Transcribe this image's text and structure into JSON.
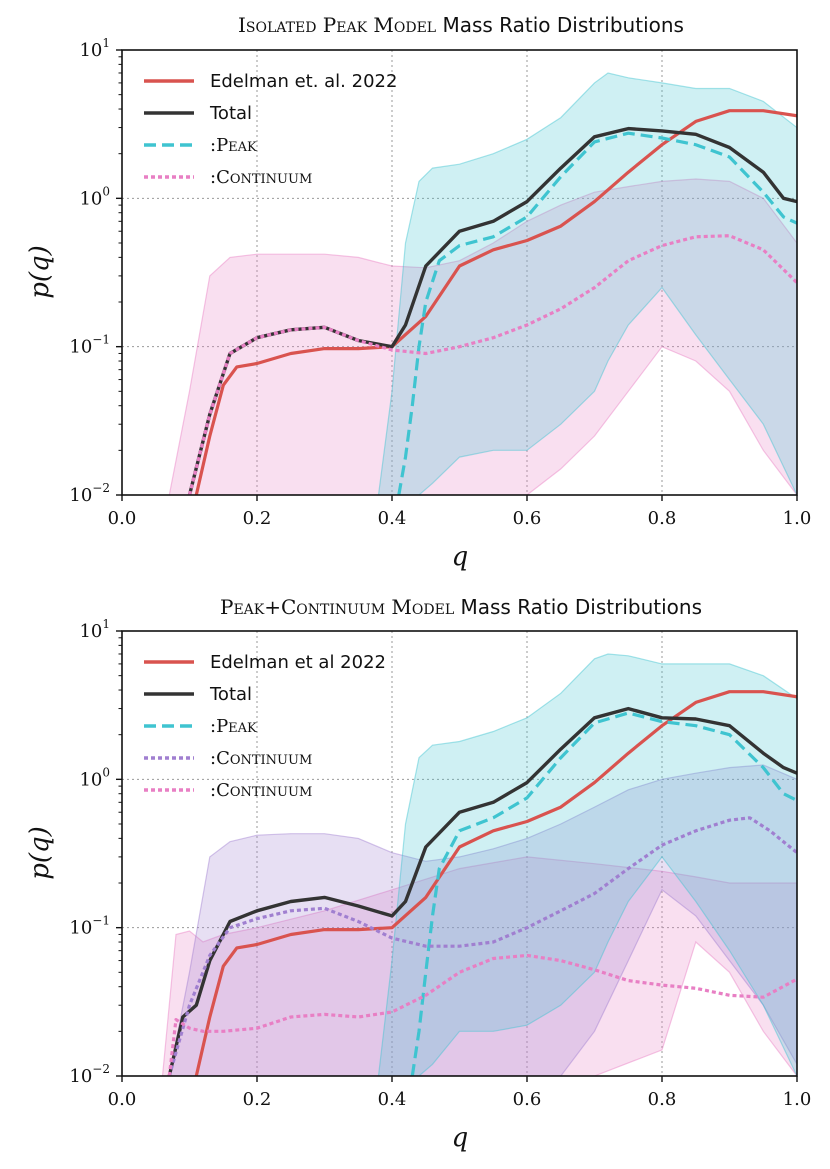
{
  "colors": {
    "edelman": "#d9534f",
    "total": "#333333",
    "peak": "#3fc4d0",
    "continuum": "#a07fd0",
    "continuum2": "#e87fc4"
  },
  "chart_data": [
    {
      "type": "line",
      "title_prefix": "Isolated Peak Model",
      "title_suffix": "Mass Ratio Distributions",
      "xlabel": "q",
      "ylabel": "p(q)",
      "xlim": [
        0.0,
        1.0
      ],
      "ylim": [
        0.01,
        10
      ],
      "yscale": "log",
      "grid": true,
      "legend_position": "upper-left",
      "x_ticks": [
        "0.0",
        "0.2",
        "0.4",
        "0.6",
        "0.8",
        "1.0"
      ],
      "y_ticks": [
        {
          "base": "10",
          "exp": "1"
        },
        {
          "base": "10",
          "exp": "0"
        },
        {
          "base": "10",
          "exp": "−1"
        },
        {
          "base": "10",
          "exp": "−2"
        }
      ],
      "legend": [
        {
          "label": "Edelman et. al. 2022",
          "series": "edelman"
        },
        {
          "label": "Total",
          "series": "total"
        },
        {
          "label": ":Peak",
          "series": "peak"
        },
        {
          "label": ":Continuum",
          "series": "continuum2"
        }
      ],
      "bands": [
        {
          "series": "continuum2",
          "x": [
            0.07,
            0.1,
            0.13,
            0.16,
            0.2,
            0.25,
            0.3,
            0.35,
            0.4,
            0.45,
            0.5,
            0.55,
            0.6,
            0.65,
            0.7,
            0.75,
            0.8,
            0.85,
            0.9,
            0.95,
            1.0
          ],
          "upper": [
            0.01,
            0.05,
            0.3,
            0.4,
            0.42,
            0.42,
            0.42,
            0.4,
            0.35,
            0.34,
            0.38,
            0.5,
            0.7,
            0.9,
            1.1,
            1.2,
            1.3,
            1.35,
            1.3,
            1.0,
            0.5
          ],
          "lower": [
            0.01,
            0.01,
            0.01,
            0.01,
            0.01,
            0.01,
            0.01,
            0.01,
            0.01,
            0.01,
            0.01,
            0.01,
            0.01,
            0.015,
            0.025,
            0.05,
            0.1,
            0.08,
            0.05,
            0.02,
            0.01
          ]
        },
        {
          "series": "peak",
          "x": [
            0.38,
            0.4,
            0.42,
            0.44,
            0.46,
            0.5,
            0.55,
            0.6,
            0.65,
            0.7,
            0.72,
            0.75,
            0.8,
            0.85,
            0.9,
            0.95,
            1.0
          ],
          "upper": [
            0.01,
            0.05,
            0.5,
            1.3,
            1.6,
            1.7,
            2.0,
            2.5,
            3.5,
            6.0,
            7.0,
            6.5,
            6.0,
            5.5,
            5.5,
            4.5,
            3.0
          ],
          "lower": [
            0.01,
            0.01,
            0.01,
            0.01,
            0.012,
            0.018,
            0.02,
            0.02,
            0.03,
            0.05,
            0.08,
            0.14,
            0.25,
            0.12,
            0.06,
            0.03,
            0.01
          ]
        }
      ],
      "series": [
        {
          "name": "edelman",
          "x": [
            0.11,
            0.13,
            0.15,
            0.17,
            0.2,
            0.25,
            0.3,
            0.35,
            0.4,
            0.45,
            0.5,
            0.55,
            0.6,
            0.65,
            0.7,
            0.75,
            0.8,
            0.85,
            0.9,
            0.95,
            1.0
          ],
          "y": [
            0.01,
            0.025,
            0.055,
            0.073,
            0.077,
            0.09,
            0.097,
            0.097,
            0.1,
            0.16,
            0.35,
            0.45,
            0.52,
            0.65,
            0.95,
            1.5,
            2.3,
            3.3,
            3.9,
            3.9,
            3.6
          ]
        },
        {
          "name": "total",
          "x": [
            0.1,
            0.13,
            0.16,
            0.2,
            0.25,
            0.3,
            0.35,
            0.4,
            0.42,
            0.45,
            0.5,
            0.55,
            0.6,
            0.65,
            0.7,
            0.75,
            0.8,
            0.85,
            0.9,
            0.95,
            0.98,
            1.0
          ],
          "y": [
            0.01,
            0.035,
            0.09,
            0.115,
            0.13,
            0.135,
            0.11,
            0.1,
            0.14,
            0.35,
            0.6,
            0.7,
            0.95,
            1.6,
            2.6,
            2.95,
            2.85,
            2.7,
            2.2,
            1.5,
            1.0,
            0.95
          ]
        },
        {
          "name": "peak",
          "x": [
            0.41,
            0.42,
            0.43,
            0.44,
            0.45,
            0.47,
            0.5,
            0.55,
            0.6,
            0.65,
            0.7,
            0.75,
            0.8,
            0.85,
            0.9,
            0.95,
            0.98,
            1.0
          ],
          "y": [
            0.01,
            0.018,
            0.04,
            0.1,
            0.2,
            0.38,
            0.48,
            0.55,
            0.75,
            1.4,
            2.4,
            2.75,
            2.55,
            2.3,
            1.9,
            1.1,
            0.75,
            0.68
          ]
        },
        {
          "name": "continuum2",
          "x": [
            0.1,
            0.13,
            0.16,
            0.2,
            0.25,
            0.3,
            0.35,
            0.4,
            0.45,
            0.5,
            0.55,
            0.6,
            0.65,
            0.7,
            0.75,
            0.8,
            0.85,
            0.9,
            0.95,
            1.0
          ],
          "y": [
            0.01,
            0.035,
            0.09,
            0.115,
            0.13,
            0.135,
            0.11,
            0.095,
            0.09,
            0.1,
            0.115,
            0.14,
            0.18,
            0.25,
            0.38,
            0.48,
            0.55,
            0.56,
            0.45,
            0.27
          ]
        }
      ]
    },
    {
      "type": "line",
      "title_prefix": "Peak+Continuum Model",
      "title_suffix": "Mass Ratio Distributions",
      "xlabel": "q",
      "ylabel": "p(q)",
      "xlim": [
        0.0,
        1.0
      ],
      "ylim": [
        0.01,
        10
      ],
      "yscale": "log",
      "grid": true,
      "legend_position": "upper-left",
      "x_ticks": [
        "0.0",
        "0.2",
        "0.4",
        "0.6",
        "0.8",
        "1.0"
      ],
      "y_ticks": [
        {
          "base": "10",
          "exp": "1"
        },
        {
          "base": "10",
          "exp": "0"
        },
        {
          "base": "10",
          "exp": "−1"
        },
        {
          "base": "10",
          "exp": "−2"
        }
      ],
      "legend": [
        {
          "label": "Edelman et al 2022",
          "series": "edelman"
        },
        {
          "label": "Total",
          "series": "total"
        },
        {
          "label": ":Peak",
          "series": "peak"
        },
        {
          "label": ":Continuum",
          "series": "continuum"
        },
        {
          "label": ":Continuum",
          "series": "continuum2"
        }
      ],
      "bands": [
        {
          "series": "continuum2",
          "x": [
            0.06,
            0.08,
            0.1,
            0.12,
            0.15,
            0.2,
            0.3,
            0.4,
            0.5,
            0.6,
            0.7,
            0.8,
            0.85,
            0.9,
            0.95,
            1.0
          ],
          "upper": [
            0.01,
            0.09,
            0.095,
            0.08,
            0.09,
            0.1,
            0.13,
            0.18,
            0.25,
            0.3,
            0.27,
            0.24,
            0.22,
            0.2,
            0.2,
            0.2
          ],
          "lower": [
            0.01,
            0.01,
            0.01,
            0.01,
            0.01,
            0.01,
            0.01,
            0.01,
            0.01,
            0.01,
            0.01,
            0.015,
            0.08,
            0.05,
            0.02,
            0.01
          ]
        },
        {
          "series": "continuum",
          "x": [
            0.07,
            0.1,
            0.13,
            0.16,
            0.2,
            0.25,
            0.3,
            0.35,
            0.4,
            0.45,
            0.5,
            0.55,
            0.6,
            0.65,
            0.7,
            0.75,
            0.8,
            0.85,
            0.9,
            0.95,
            1.0
          ],
          "upper": [
            0.01,
            0.05,
            0.3,
            0.38,
            0.42,
            0.43,
            0.43,
            0.4,
            0.32,
            0.28,
            0.3,
            0.34,
            0.4,
            0.5,
            0.65,
            0.85,
            1.0,
            1.1,
            1.2,
            1.25,
            1.0
          ],
          "lower": [
            0.01,
            0.01,
            0.01,
            0.01,
            0.01,
            0.01,
            0.01,
            0.01,
            0.01,
            0.01,
            0.01,
            0.01,
            0.01,
            0.01,
            0.02,
            0.06,
            0.18,
            0.12,
            0.06,
            0.03,
            0.012
          ]
        },
        {
          "series": "peak",
          "x": [
            0.38,
            0.4,
            0.42,
            0.44,
            0.46,
            0.5,
            0.55,
            0.6,
            0.65,
            0.7,
            0.72,
            0.75,
            0.8,
            0.85,
            0.9,
            0.95,
            1.0
          ],
          "upper": [
            0.01,
            0.06,
            0.5,
            1.4,
            1.7,
            1.8,
            2.1,
            2.6,
            3.8,
            6.5,
            7.0,
            6.8,
            6.0,
            6.0,
            6.0,
            5.0,
            3.5
          ],
          "lower": [
            0.01,
            0.01,
            0.01,
            0.01,
            0.012,
            0.02,
            0.02,
            0.022,
            0.03,
            0.05,
            0.08,
            0.15,
            0.3,
            0.15,
            0.07,
            0.03,
            0.01
          ]
        }
      ],
      "series": [
        {
          "name": "edelman",
          "x": [
            0.11,
            0.13,
            0.15,
            0.17,
            0.2,
            0.25,
            0.3,
            0.35,
            0.4,
            0.45,
            0.5,
            0.55,
            0.6,
            0.65,
            0.7,
            0.75,
            0.8,
            0.85,
            0.9,
            0.95,
            1.0
          ],
          "y": [
            0.01,
            0.025,
            0.055,
            0.073,
            0.077,
            0.09,
            0.097,
            0.097,
            0.1,
            0.16,
            0.35,
            0.45,
            0.52,
            0.65,
            0.95,
            1.5,
            2.3,
            3.3,
            3.9,
            3.9,
            3.6
          ]
        },
        {
          "name": "total",
          "x": [
            0.07,
            0.09,
            0.11,
            0.13,
            0.16,
            0.2,
            0.25,
            0.3,
            0.35,
            0.4,
            0.42,
            0.45,
            0.5,
            0.55,
            0.6,
            0.65,
            0.7,
            0.75,
            0.8,
            0.85,
            0.9,
            0.95,
            0.98,
            1.0
          ],
          "y": [
            0.01,
            0.025,
            0.03,
            0.06,
            0.11,
            0.13,
            0.15,
            0.16,
            0.14,
            0.12,
            0.15,
            0.35,
            0.6,
            0.7,
            0.95,
            1.6,
            2.6,
            3.0,
            2.6,
            2.55,
            2.3,
            1.5,
            1.2,
            1.1
          ]
        },
        {
          "name": "peak",
          "x": [
            0.43,
            0.44,
            0.45,
            0.46,
            0.47,
            0.5,
            0.55,
            0.6,
            0.65,
            0.7,
            0.75,
            0.8,
            0.85,
            0.9,
            0.95,
            0.98,
            1.0
          ],
          "y": [
            0.01,
            0.02,
            0.05,
            0.12,
            0.25,
            0.45,
            0.55,
            0.75,
            1.4,
            2.4,
            2.8,
            2.45,
            2.3,
            2.0,
            1.2,
            0.8,
            0.72
          ]
        },
        {
          "name": "continuum",
          "x": [
            0.07,
            0.1,
            0.13,
            0.16,
            0.2,
            0.25,
            0.3,
            0.35,
            0.4,
            0.45,
            0.5,
            0.55,
            0.6,
            0.65,
            0.7,
            0.75,
            0.8,
            0.85,
            0.9,
            0.93,
            0.96,
            1.0
          ],
          "y": [
            0.01,
            0.03,
            0.065,
            0.1,
            0.115,
            0.13,
            0.135,
            0.11,
            0.085,
            0.075,
            0.075,
            0.08,
            0.1,
            0.13,
            0.17,
            0.25,
            0.36,
            0.45,
            0.53,
            0.55,
            0.45,
            0.32
          ]
        },
        {
          "name": "continuum2",
          "x": [
            0.07,
            0.08,
            0.1,
            0.12,
            0.15,
            0.2,
            0.25,
            0.3,
            0.35,
            0.4,
            0.45,
            0.5,
            0.55,
            0.6,
            0.65,
            0.7,
            0.75,
            0.8,
            0.85,
            0.9,
            0.95,
            1.0
          ],
          "y": [
            0.01,
            0.024,
            0.021,
            0.02,
            0.02,
            0.021,
            0.025,
            0.026,
            0.025,
            0.027,
            0.035,
            0.05,
            0.062,
            0.065,
            0.06,
            0.052,
            0.044,
            0.041,
            0.039,
            0.035,
            0.034,
            0.045
          ]
        }
      ]
    }
  ]
}
